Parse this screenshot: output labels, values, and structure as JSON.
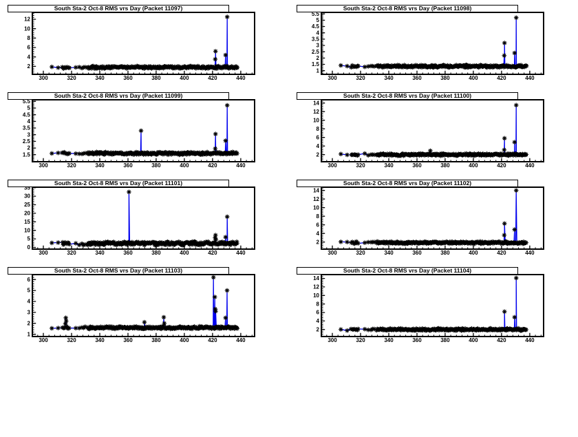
{
  "shared": {
    "background": "#ffffff",
    "frame_color": "#000000",
    "line_color": "#0000ee",
    "marker_color": "#000000",
    "marker_style": "asterisk",
    "xlim": [
      292.2,
      449.8
    ],
    "xticks": [
      300,
      320,
      340,
      360,
      380,
      400,
      420,
      440
    ],
    "x_minor_step": 4,
    "segments": [
      [
        305.9,
        306.1,
        1
      ],
      [
        310.4,
        310.6,
        1
      ],
      [
        313.5,
        318.5,
        8
      ],
      [
        322.8,
        323.2,
        1
      ],
      [
        325.3,
        325.7,
        1
      ],
      [
        327.4,
        329.6,
        3
      ],
      [
        331.5,
        437.5,
        263
      ]
    ]
  },
  "chart_data": [
    {
      "type": "scatter",
      "title": "South Sta-2 Oct-8 RMS vrs Day (Packet 11097)",
      "packet": "11097",
      "xlabel": "",
      "ylabel": "",
      "ylim": [
        0.3,
        13.46
      ],
      "yticks": [
        2,
        4,
        6,
        8,
        10,
        12
      ],
      "y_minor_step": 0.4,
      "baseline": 1.78,
      "noise": 0.3,
      "seed": 11097,
      "outliers": [
        [
          421.9,
          3.5
        ],
        [
          422.1,
          5.2
        ],
        [
          429.2,
          4.4
        ],
        [
          430.4,
          12.5
        ]
      ]
    },
    {
      "type": "scatter",
      "title": "South Sta-2 Oct-8 RMS vrs Day (Packet 11098)",
      "packet": "11098",
      "xlabel": "",
      "ylabel": "",
      "ylim": [
        0.71,
        5.62
      ],
      "yticks": [
        1,
        1.5,
        2,
        2.5,
        3,
        3.5,
        4,
        4.5,
        5,
        5.5
      ],
      "y_minor_step": 0.1,
      "baseline": 1.35,
      "noise": 0.11,
      "seed": 11098,
      "outliers": [
        [
          421.9,
          2.2
        ],
        [
          422.1,
          3.2
        ],
        [
          429.2,
          2.4
        ],
        [
          430.4,
          5.2
        ]
      ]
    },
    {
      "type": "scatter",
      "title": "South Sta-2 Oct-8 RMS vrs Day (Packet 11099)",
      "packet": "11099",
      "xlabel": "",
      "ylabel": "",
      "ylim": [
        0.97,
        5.62
      ],
      "yticks": [
        1.5,
        2,
        2.5,
        3,
        3.5,
        4,
        4.5,
        5,
        5.5
      ],
      "y_minor_step": 0.1,
      "baseline": 1.6,
      "noise": 0.11,
      "seed": 11099,
      "outliers": [
        [
          369.3,
          3.3
        ],
        [
          421.9,
          1.95
        ],
        [
          422.1,
          3.05
        ],
        [
          429.2,
          2.55
        ],
        [
          430.4,
          5.2
        ]
      ]
    },
    {
      "type": "scatter",
      "title": "South Sta-2 Oct-8 RMS vrs Day (Packet 11100)",
      "packet": "11100",
      "xlabel": "",
      "ylabel": "",
      "ylim": [
        0.35,
        14.75
      ],
      "yticks": [
        2,
        4,
        6,
        8,
        10,
        12,
        14
      ],
      "y_minor_step": 0.4,
      "baseline": 2.0,
      "noise": 0.3,
      "seed": 11100,
      "outliers": [
        [
          369.5,
          2.9
        ],
        [
          421.9,
          3.1
        ],
        [
          422.1,
          5.8
        ],
        [
          429.2,
          4.9
        ],
        [
          430.4,
          13.5
        ]
      ]
    },
    {
      "type": "scatter",
      "title": "South Sta-2 Oct-8 RMS vrs Day (Packet 11101)",
      "packet": "11101",
      "xlabel": "",
      "ylabel": "",
      "ylim": [
        -1.0,
        35.3
      ],
      "yticks": [
        0,
        5,
        10,
        15,
        20,
        25,
        30,
        35
      ],
      "y_minor_step": 1,
      "baseline": 2.4,
      "noise": 1.2,
      "seed": 11101,
      "outliers": [
        [
          360.7,
          32.5
        ],
        [
          421.8,
          5.6
        ],
        [
          422.1,
          7.2
        ],
        [
          422.4,
          4.6
        ],
        [
          429.2,
          6.0
        ],
        [
          430.4,
          18.0
        ]
      ]
    },
    {
      "type": "scatter",
      "title": "South Sta-2 Oct-8 RMS vrs Day (Packet 11102)",
      "packet": "11102",
      "xlabel": "",
      "ylabel": "",
      "ylim": [
        0.35,
        14.75
      ],
      "yticks": [
        2,
        4,
        6,
        8,
        10,
        12,
        14
      ],
      "y_minor_step": 0.4,
      "baseline": 1.85,
      "noise": 0.3,
      "seed": 11102,
      "outliers": [
        [
          421.9,
          3.6
        ],
        [
          422.1,
          6.3
        ],
        [
          429.2,
          4.9
        ],
        [
          430.4,
          14.0
        ]
      ]
    },
    {
      "type": "scatter",
      "title": "South Sta-2 Oct-8 RMS vrs Day (Packet 11103)",
      "packet": "11103",
      "xlabel": "",
      "ylabel": "",
      "ylim": [
        0.79,
        6.45
      ],
      "yticks": [
        1,
        2,
        3,
        4,
        5,
        6
      ],
      "y_minor_step": 0.2,
      "baseline": 1.6,
      "noise": 0.13,
      "seed": 11103,
      "outliers": [
        [
          315.6,
          1.95
        ],
        [
          315.9,
          2.5
        ],
        [
          316.2,
          2.2
        ],
        [
          371.7,
          2.1
        ],
        [
          385.4,
          2.55
        ],
        [
          385.8,
          2.0
        ],
        [
          420.6,
          6.2
        ],
        [
          421.6,
          4.4
        ],
        [
          421.9,
          3.3
        ],
        [
          422.2,
          3.1
        ],
        [
          429.2,
          2.5
        ],
        [
          430.3,
          5.0
        ]
      ]
    },
    {
      "type": "scatter",
      "title": "South Sta-2 Oct-8 RMS vrs Day (Packet 11104)",
      "packet": "11104",
      "xlabel": "",
      "ylabel": "",
      "ylim": [
        0.35,
        14.9
      ],
      "yticks": [
        2,
        4,
        6,
        8,
        10,
        12,
        14
      ],
      "y_minor_step": 0.4,
      "baseline": 2.0,
      "noise": 0.3,
      "seed": 11104,
      "outliers": [
        [
          422.1,
          6.2
        ],
        [
          429.2,
          4.9
        ],
        [
          430.4,
          14.1
        ]
      ]
    }
  ]
}
